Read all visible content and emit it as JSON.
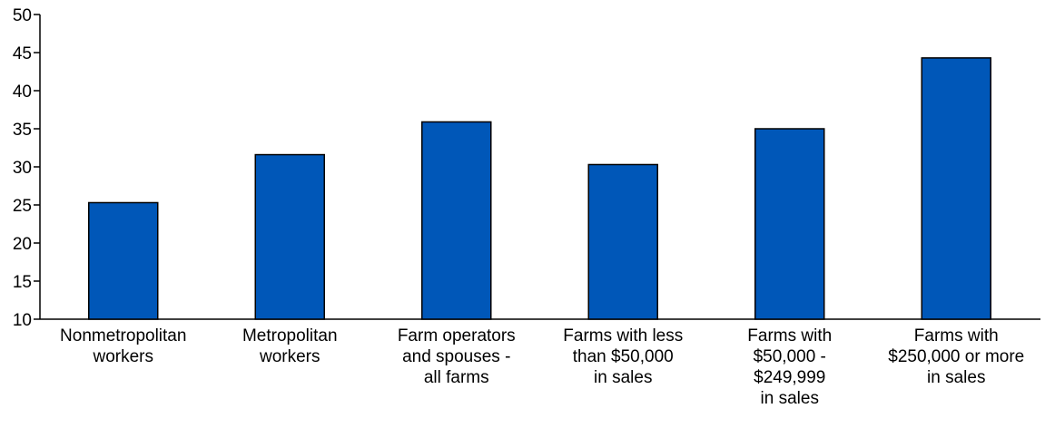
{
  "chart_data": {
    "type": "bar",
    "title": "",
    "xlabel": "",
    "ylabel": "",
    "ylim": [
      10,
      50
    ],
    "yticks": [
      10,
      15,
      20,
      25,
      30,
      35,
      40,
      45,
      50
    ],
    "grid": false,
    "legend": "none",
    "bar_color": "#0057b8",
    "bar_edge_color": "#000000",
    "categories": [
      [
        "Nonmetropolitan",
        "workers"
      ],
      [
        "Metropolitan",
        "workers"
      ],
      [
        "Farm operators",
        "and spouses -",
        "all farms"
      ],
      [
        "Farms with less",
        "than $50,000",
        "in sales"
      ],
      [
        "Farms with",
        "$50,000 -",
        "$249,999",
        "in sales"
      ],
      [
        "Farms with",
        "$250,000 or more",
        "in sales"
      ]
    ],
    "values": [
      25.3,
      31.6,
      35.9,
      30.3,
      35.0,
      44.3
    ]
  }
}
